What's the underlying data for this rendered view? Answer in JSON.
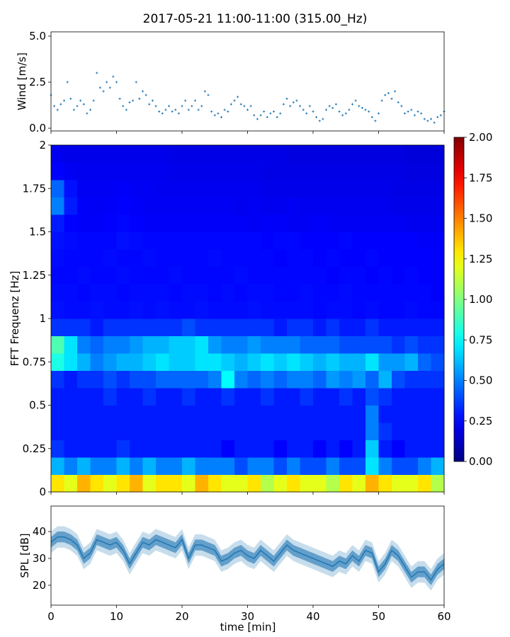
{
  "title": "2017-05-21 11:00-11:00 (315.00_Hz)",
  "chart_data": [
    {
      "type": "scatter",
      "name": "wind",
      "ylabel": "Wind [m/s]",
      "xlim": [
        0,
        60
      ],
      "ylim": [
        -0.15,
        5.23
      ],
      "yticks": [
        0,
        2.5,
        5.0
      ],
      "ytick_labels": [
        "0.0",
        "2.5",
        "5.0"
      ],
      "xticks": [
        0,
        10,
        20,
        30,
        40,
        50,
        60
      ],
      "color": "#1f77b4",
      "x_step_min": 0.5,
      "values": [
        1.8,
        1.2,
        1.0,
        1.3,
        1.5,
        2.5,
        1.6,
        1.0,
        1.2,
        1.5,
        1.3,
        0.8,
        1.0,
        1.5,
        3.0,
        2.2,
        2.0,
        2.5,
        2.2,
        2.8,
        2.5,
        1.6,
        1.2,
        1.0,
        1.4,
        1.5,
        2.5,
        1.6,
        2.0,
        1.8,
        1.3,
        1.5,
        1.2,
        0.9,
        0.8,
        1.0,
        1.2,
        0.9,
        1.0,
        0.8,
        1.2,
        1.5,
        1.0,
        1.2,
        1.5,
        1.0,
        1.2,
        2.0,
        1.8,
        0.9,
        0.7,
        0.8,
        0.6,
        1.0,
        0.9,
        1.3,
        1.5,
        1.7,
        1.3,
        1.2,
        1.0,
        1.2,
        0.7,
        0.5,
        0.7,
        0.9,
        0.6,
        0.8,
        0.9,
        0.6,
        0.8,
        1.3,
        1.6,
        1.2,
        1.4,
        1.5,
        1.2,
        1.0,
        0.8,
        1.2,
        0.9,
        0.6,
        0.4,
        0.5,
        1.0,
        1.2,
        1.1,
        1.3,
        0.9,
        0.7,
        0.8,
        1.0,
        1.3,
        1.5,
        1.2,
        1.1,
        1.0,
        0.9,
        0.6,
        0.4,
        0.8,
        1.5,
        1.8,
        1.9,
        1.6,
        2.0,
        1.4,
        1.2,
        0.8,
        0.9,
        1.0,
        0.7,
        0.9,
        0.8,
        0.5,
        0.4,
        0.5,
        0.3,
        0.6,
        0.7,
        0.9
      ]
    },
    {
      "type": "heatmap",
      "name": "spectrogram",
      "ylabel": "FFT Frequenz [Hz]",
      "xlim": [
        0,
        60
      ],
      "ylim": [
        0,
        2
      ],
      "yticks": [
        0,
        0.25,
        0.5,
        0.75,
        1,
        1.25,
        1.5,
        1.75,
        2
      ],
      "ytick_labels": [
        "0",
        "0.25",
        "0.5",
        "0.75",
        "1",
        "1.25",
        "1.5",
        "1.75",
        "2"
      ],
      "xticks": [
        0,
        10,
        20,
        30,
        40,
        50,
        60
      ],
      "time_bin_min": 2,
      "freq_bin_hz": 0.1,
      "colormap": "jet",
      "clim": [
        0,
        2
      ],
      "colorbar_ticks": [
        "0.00",
        "0.25",
        "0.50",
        "0.75",
        "1.00",
        "1.25",
        "1.50",
        "1.75",
        "2.00"
      ],
      "rows_low_to_high": [
        [
          1.3,
          1.2,
          1.4,
          1.3,
          1.2,
          1.3,
          1.4,
          1.2,
          1.3,
          1.3,
          1.2,
          1.4,
          1.3,
          1.2,
          1.2,
          1.3,
          1.1,
          1.2,
          1.3,
          1.2,
          1.2,
          1.1,
          1.3,
          1.2,
          1.4,
          1.3,
          1.2,
          1.2,
          1.3,
          1.1
        ],
        [
          0.6,
          0.5,
          0.6,
          0.5,
          0.5,
          0.6,
          0.5,
          0.6,
          0.5,
          0.5,
          0.6,
          0.5,
          0.5,
          0.5,
          0.4,
          0.5,
          0.5,
          0.4,
          0.5,
          0.4,
          0.4,
          0.5,
          0.4,
          0.4,
          0.7,
          0.5,
          0.4,
          0.4,
          0.5,
          0.6
        ],
        [
          0.35,
          0.3,
          0.3,
          0.3,
          0.3,
          0.35,
          0.3,
          0.3,
          0.3,
          0.3,
          0.3,
          0.3,
          0.3,
          0.25,
          0.3,
          0.3,
          0.3,
          0.25,
          0.3,
          0.3,
          0.25,
          0.3,
          0.25,
          0.3,
          0.65,
          0.3,
          0.25,
          0.3,
          0.3,
          0.3
        ],
        [
          0.3,
          0.3,
          0.3,
          0.3,
          0.3,
          0.3,
          0.3,
          0.3,
          0.3,
          0.3,
          0.3,
          0.3,
          0.3,
          0.3,
          0.3,
          0.3,
          0.3,
          0.3,
          0.3,
          0.3,
          0.3,
          0.3,
          0.3,
          0.3,
          0.5,
          0.35,
          0.3,
          0.3,
          0.3,
          0.3
        ],
        [
          0.3,
          0.3,
          0.3,
          0.3,
          0.3,
          0.3,
          0.3,
          0.3,
          0.3,
          0.3,
          0.3,
          0.3,
          0.3,
          0.3,
          0.3,
          0.3,
          0.3,
          0.3,
          0.3,
          0.3,
          0.3,
          0.3,
          0.3,
          0.3,
          0.5,
          0.3,
          0.3,
          0.3,
          0.3,
          0.3
        ],
        [
          0.3,
          0.3,
          0.3,
          0.3,
          0.35,
          0.3,
          0.3,
          0.35,
          0.3,
          0.3,
          0.35,
          0.3,
          0.3,
          0.35,
          0.3,
          0.3,
          0.35,
          0.3,
          0.3,
          0.35,
          0.3,
          0.3,
          0.35,
          0.3,
          0.4,
          0.35,
          0.3,
          0.3,
          0.3,
          0.3
        ],
        [
          0.35,
          0.3,
          0.35,
          0.35,
          0.4,
          0.35,
          0.4,
          0.4,
          0.45,
          0.45,
          0.45,
          0.45,
          0.5,
          0.75,
          0.5,
          0.45,
          0.5,
          0.45,
          0.5,
          0.5,
          0.45,
          0.55,
          0.5,
          0.55,
          0.45,
          0.6,
          0.4,
          0.35,
          0.35,
          0.35
        ],
        [
          0.8,
          0.7,
          0.6,
          0.5,
          0.55,
          0.6,
          0.6,
          0.65,
          0.7,
          0.65,
          0.65,
          0.7,
          0.7,
          0.65,
          0.6,
          0.65,
          0.7,
          0.65,
          0.7,
          0.65,
          0.6,
          0.65,
          0.6,
          0.6,
          0.7,
          0.55,
          0.55,
          0.6,
          0.45,
          0.4
        ],
        [
          0.9,
          0.7,
          0.5,
          0.45,
          0.5,
          0.5,
          0.55,
          0.6,
          0.6,
          0.65,
          0.65,
          0.7,
          0.55,
          0.5,
          0.5,
          0.55,
          0.5,
          0.5,
          0.5,
          0.45,
          0.45,
          0.45,
          0.4,
          0.4,
          0.4,
          0.4,
          0.35,
          0.4,
          0.35,
          0.35
        ],
        [
          0.35,
          0.35,
          0.35,
          0.3,
          0.35,
          0.35,
          0.35,
          0.35,
          0.35,
          0.35,
          0.4,
          0.35,
          0.35,
          0.35,
          0.35,
          0.35,
          0.35,
          0.3,
          0.35,
          0.35,
          0.3,
          0.35,
          0.3,
          0.3,
          0.35,
          0.3,
          0.3,
          0.3,
          0.3,
          0.3
        ],
        [
          0.28,
          0.27,
          0.27,
          0.28,
          0.27,
          0.27,
          0.28,
          0.27,
          0.28,
          0.27,
          0.27,
          0.28,
          0.27,
          0.27,
          0.27,
          0.28,
          0.27,
          0.27,
          0.27,
          0.27,
          0.26,
          0.27,
          0.27,
          0.26,
          0.27,
          0.26,
          0.26,
          0.27,
          0.26,
          0.26
        ],
        [
          0.27,
          0.27,
          0.26,
          0.27,
          0.27,
          0.26,
          0.27,
          0.27,
          0.27,
          0.26,
          0.27,
          0.27,
          0.26,
          0.27,
          0.26,
          0.27,
          0.27,
          0.26,
          0.26,
          0.27,
          0.26,
          0.26,
          0.27,
          0.26,
          0.26,
          0.26,
          0.26,
          0.26,
          0.26,
          0.25
        ],
        [
          0.26,
          0.26,
          0.27,
          0.26,
          0.26,
          0.27,
          0.26,
          0.26,
          0.26,
          0.27,
          0.26,
          0.26,
          0.26,
          0.26,
          0.27,
          0.26,
          0.26,
          0.26,
          0.26,
          0.26,
          0.26,
          0.25,
          0.26,
          0.26,
          0.25,
          0.26,
          0.25,
          0.26,
          0.25,
          0.25
        ],
        [
          0.27,
          0.26,
          0.26,
          0.26,
          0.27,
          0.26,
          0.26,
          0.27,
          0.26,
          0.26,
          0.26,
          0.26,
          0.27,
          0.26,
          0.26,
          0.26,
          0.26,
          0.25,
          0.26,
          0.26,
          0.25,
          0.26,
          0.25,
          0.25,
          0.26,
          0.25,
          0.25,
          0.25,
          0.25,
          0.25
        ],
        [
          0.28,
          0.27,
          0.26,
          0.26,
          0.26,
          0.28,
          0.27,
          0.26,
          0.26,
          0.26,
          0.26,
          0.26,
          0.26,
          0.26,
          0.26,
          0.26,
          0.25,
          0.26,
          0.26,
          0.25,
          0.25,
          0.25,
          0.26,
          0.25,
          0.25,
          0.25,
          0.25,
          0.25,
          0.24,
          0.24
        ],
        [
          0.3,
          0.25,
          0.24,
          0.24,
          0.25,
          0.26,
          0.25,
          0.24,
          0.24,
          0.24,
          0.24,
          0.24,
          0.24,
          0.24,
          0.24,
          0.23,
          0.24,
          0.24,
          0.23,
          0.23,
          0.24,
          0.23,
          0.23,
          0.23,
          0.23,
          0.23,
          0.23,
          0.22,
          0.22,
          0.22
        ],
        [
          0.5,
          0.3,
          0.24,
          0.23,
          0.24,
          0.25,
          0.24,
          0.23,
          0.23,
          0.23,
          0.23,
          0.23,
          0.23,
          0.23,
          0.22,
          0.23,
          0.22,
          0.22,
          0.23,
          0.22,
          0.22,
          0.22,
          0.22,
          0.22,
          0.22,
          0.22,
          0.21,
          0.21,
          0.21,
          0.21
        ],
        [
          0.45,
          0.28,
          0.23,
          0.23,
          0.23,
          0.24,
          0.23,
          0.23,
          0.22,
          0.22,
          0.22,
          0.22,
          0.22,
          0.22,
          0.22,
          0.22,
          0.21,
          0.21,
          0.21,
          0.21,
          0.21,
          0.21,
          0.21,
          0.21,
          0.21,
          0.21,
          0.2,
          0.2,
          0.2,
          0.2
        ],
        [
          0.25,
          0.23,
          0.22,
          0.22,
          0.22,
          0.22,
          0.22,
          0.22,
          0.22,
          0.21,
          0.21,
          0.21,
          0.21,
          0.21,
          0.21,
          0.21,
          0.2,
          0.2,
          0.2,
          0.2,
          0.2,
          0.2,
          0.2,
          0.2,
          0.2,
          0.2,
          0.2,
          0.19,
          0.19,
          0.19
        ],
        [
          0.22,
          0.21,
          0.21,
          0.21,
          0.21,
          0.21,
          0.21,
          0.21,
          0.21,
          0.2,
          0.2,
          0.2,
          0.2,
          0.2,
          0.2,
          0.2,
          0.2,
          0.2,
          0.19,
          0.19,
          0.19,
          0.19,
          0.19,
          0.19,
          0.19,
          0.19,
          0.19,
          0.18,
          0.18,
          0.18
        ]
      ]
    },
    {
      "type": "line",
      "name": "spl",
      "ylabel": "SPL [dB]",
      "xlabel": "time [min]",
      "xlim": [
        0,
        60
      ],
      "ylim": [
        12.6,
        49.5
      ],
      "yticks": [
        20,
        30,
        40
      ],
      "xticks": [
        0,
        10,
        20,
        30,
        40,
        50,
        60
      ],
      "color": "#1f77b4",
      "x_step_min": 1,
      "spread_db": 4,
      "values": [
        36,
        38,
        38,
        37,
        35,
        30,
        32,
        37,
        36,
        35,
        36,
        33,
        28,
        32,
        36,
        35,
        37,
        36,
        35,
        34,
        37,
        30,
        35,
        35,
        34,
        33,
        29,
        30,
        32,
        33,
        31,
        30,
        33,
        31,
        29,
        32,
        35,
        33,
        32,
        31,
        30,
        29,
        28,
        27,
        29,
        28,
        31,
        29,
        33,
        32,
        25,
        28,
        33,
        31,
        27,
        23,
        25,
        25,
        22,
        26,
        28
      ]
    }
  ]
}
